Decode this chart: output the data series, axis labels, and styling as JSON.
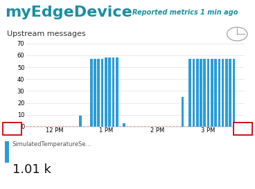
{
  "title": "myEdgeDevice",
  "subtitle": "Reported metrics 1 min ago",
  "chart_title": "Upstream messages",
  "bg_color": "#ffffff",
  "title_color": "#1a8fa0",
  "subtitle_color": "#1a8fa0",
  "chart_title_color": "#333333",
  "bar_color": "#2b9cd8",
  "dashed_line_color": "#e8a0a0",
  "ylim": [
    0,
    70
  ],
  "yticks": [
    0,
    10,
    20,
    30,
    40,
    50,
    60,
    70
  ],
  "xtick_labels": [
    "12 PM",
    "1 PM",
    "2 PM",
    "3 PM"
  ],
  "legend_label": "SimulatedTemperatureSe...",
  "legend_value": "1.01 k",
  "legend_color": "#2b9cd8",
  "bar_data": [
    [
      1.35,
      9
    ],
    [
      1.5,
      57
    ],
    [
      1.55,
      57
    ],
    [
      1.6,
      57
    ],
    [
      1.65,
      57
    ],
    [
      1.7,
      58
    ],
    [
      1.75,
      58
    ],
    [
      1.8,
      58
    ],
    [
      1.85,
      58
    ],
    [
      1.95,
      3
    ],
    [
      2.75,
      25
    ],
    [
      2.85,
      57
    ],
    [
      2.9,
      57
    ],
    [
      2.95,
      57
    ],
    [
      3.0,
      57
    ],
    [
      3.05,
      57
    ],
    [
      3.1,
      57
    ],
    [
      3.15,
      57
    ],
    [
      3.2,
      57
    ],
    [
      3.25,
      57
    ],
    [
      3.3,
      57
    ],
    [
      3.35,
      57
    ],
    [
      3.4,
      57
    ],
    [
      3.45,
      57
    ]
  ],
  "bar_width": 0.035,
  "xlim": [
    0.6,
    3.6
  ],
  "xtick_positions": [
    1.0,
    1.7,
    2.4,
    3.1
  ],
  "title_fontsize": 16,
  "subtitle_fontsize": 7,
  "chart_title_fontsize": 8,
  "ytick_fontsize": 6,
  "xtick_fontsize": 6
}
